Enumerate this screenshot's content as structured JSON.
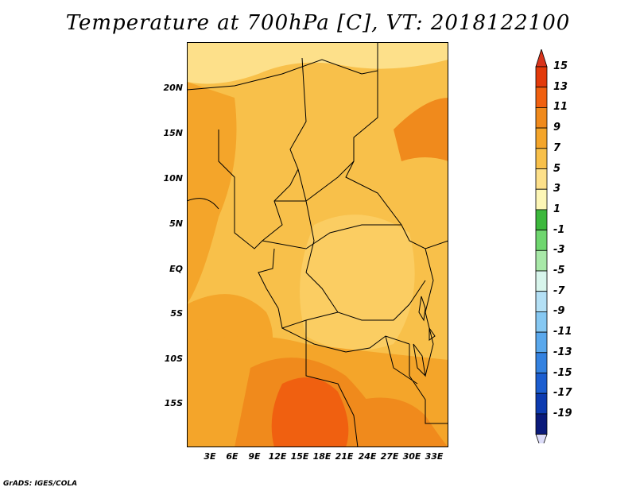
{
  "title": "Temperature at 700hPa [C], VT: 2018122100",
  "map": {
    "y_ticks": [
      "20N",
      "15N",
      "10N",
      "5N",
      "EQ",
      "5S",
      "10S",
      "15S"
    ],
    "x_ticks": [
      "3E",
      "6E",
      "9E",
      "12E",
      "15E",
      "18E",
      "21E",
      "24E",
      "27E",
      "30E",
      "33E"
    ]
  },
  "colorbar": {
    "levels": [
      "15",
      "13",
      "11",
      "9",
      "7",
      "5",
      "3",
      "1",
      "-1",
      "-3",
      "-5",
      "-7",
      "-9",
      "-11",
      "-13",
      "-15",
      "-17",
      "-19"
    ],
    "colors": [
      "#e33a0a",
      "#f06010",
      "#f08a1c",
      "#f4a52a",
      "#f8c04a",
      "#fde08a",
      "#fdf6b6",
      "#3cb83c",
      "#6fd66f",
      "#a8e8a8",
      "#d8f5ec",
      "#b4e0f5",
      "#86c8f2",
      "#5aa8ec",
      "#3482e0",
      "#1c5ed0",
      "#0d3bb0",
      "#0a1a7a"
    ],
    "top_arrow_color": "#d8341c",
    "bottom_arrow_color": "#dcdcf8"
  },
  "credit": "GrADS: IGES/COLA"
}
